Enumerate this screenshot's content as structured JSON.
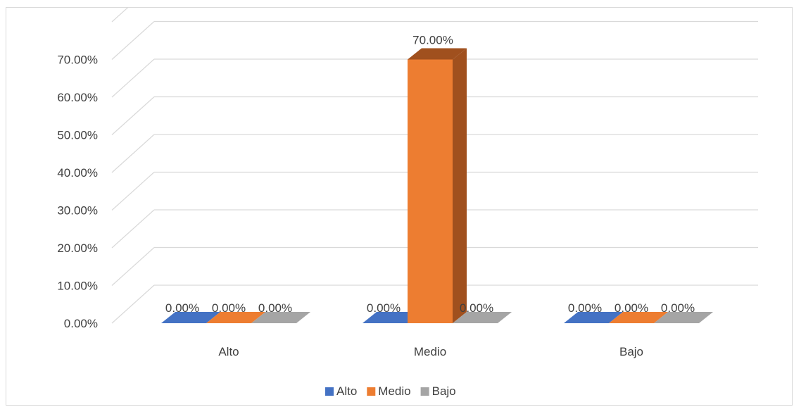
{
  "chart_data": {
    "type": "bar",
    "style": "3d-clustered-column",
    "categories": [
      "Alto",
      "Medio",
      "Bajo"
    ],
    "series": [
      {
        "name": "Alto",
        "values": [
          0,
          0,
          0
        ],
        "color": "#4472C4",
        "side_color": "#2F528F"
      },
      {
        "name": "Medio",
        "values": [
          0,
          70,
          0
        ],
        "color": "#ED7D31",
        "side_color": "#A0501E"
      },
      {
        "name": "Bajo",
        "values": [
          0,
          0,
          0
        ],
        "color": "#A5A5A5",
        "side_color": "#7B7B7B"
      }
    ],
    "y_ticks": [
      "0.00%",
      "10.00%",
      "20.00%",
      "30.00%",
      "40.00%",
      "50.00%",
      "60.00%",
      "70.00%"
    ],
    "ylim": [
      0,
      80
    ],
    "data_labels": [
      [
        "0.00%",
        "0.00%",
        "0.00%"
      ],
      [
        "0.00%",
        "70.00%",
        "0.00%"
      ],
      [
        "0.00%",
        "0.00%",
        "0.00%"
      ]
    ],
    "title": "",
    "xlabel": "",
    "ylabel": "",
    "grid": true,
    "legend_position": "bottom",
    "gridline_color": "#d9d9d9",
    "text_color": "#404040"
  }
}
